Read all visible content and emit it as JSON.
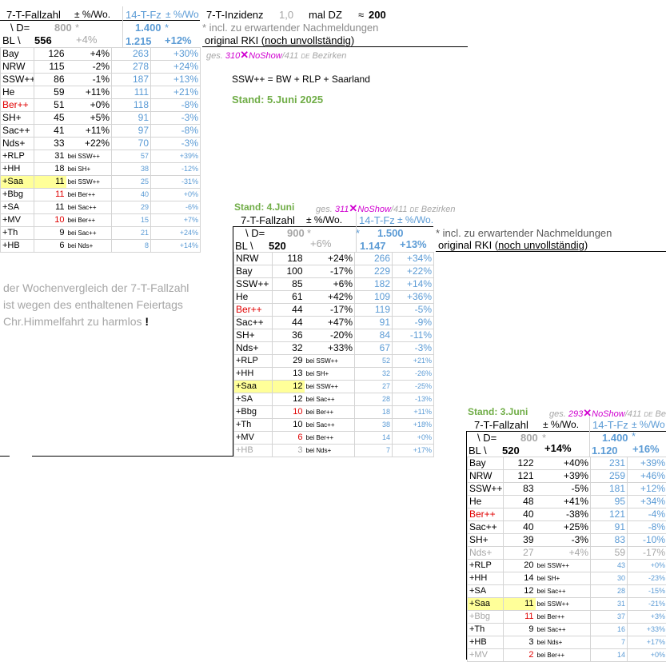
{
  "top": {
    "inzidenz_label": "7-T-Inzidenz",
    "inzidenz_value": "1,0",
    "mal_dz": "mal DZ",
    "approx": "≈",
    "approx_value": "200",
    "formula": "SSW++  =  BW + RLP + Saarland",
    "stand": "Stand: 5.Juni 2025",
    "note_star": "* incl. zu erwartender Nachmeldungen",
    "note_orig": "original RKI (",
    "note_orig_u": "noch unvollständig",
    "note_orig_end": ")",
    "source": {
      "ges": "ges.",
      "num": "310",
      "x": "✕",
      "noshow": "NoShow",
      "rest": "/411",
      "de": "DE",
      "bez": "Bezirken"
    }
  },
  "comment": {
    "line1": "der Wochenvergleich der 7-T-Fallzahl",
    "line2": "ist wegen des enthaltenen Feiertags",
    "line3": "Chr.Himmelfahrt zu harmlos",
    "excl": "!"
  },
  "table1": {
    "hdr": {
      "fallzahl": "7-T-Fallzahl",
      "pct": "± %/Wo.",
      "fz14": "14-T-Fz",
      "pct14": "± %/Wo",
      "d": "\\ D=",
      "d_val": "800",
      "star": "*",
      "fz14_val": "1.400",
      "fz14_star": "*",
      "bl": "BL \\",
      "bl_val": "556",
      "bl_pct": "+4%",
      "fz14_total": "1.215",
      "fz14_pct": "+12%"
    },
    "rows": [
      {
        "name": "Bay",
        "v": "126",
        "p": "+4%",
        "v14": "263",
        "p14": "+30%"
      },
      {
        "name": "NRW",
        "v": "115",
        "p": "-2%",
        "v14": "278",
        "p14": "+24%"
      },
      {
        "name": "SSW++",
        "v": "86",
        "p": "-1%",
        "v14": "187",
        "p14": "+13%"
      },
      {
        "name": "He",
        "v": "59",
        "p": "+11%",
        "v14": "111",
        "p14": "+21%"
      },
      {
        "name": "Ber++",
        "v": "51",
        "p": "+0%",
        "v14": "118",
        "p14": "-8%",
        "red": true
      },
      {
        "name": "SH+",
        "v": "45",
        "p": "+5%",
        "v14": "91",
        "p14": "-3%"
      },
      {
        "name": "Sac++",
        "v": "41",
        "p": "+11%",
        "v14": "97",
        "p14": "-8%"
      },
      {
        "name": "Nds+",
        "v": "33",
        "p": "+22%",
        "v14": "70",
        "p14": "-3%"
      }
    ],
    "small": [
      {
        "name": "+RLP",
        "v": "31",
        "bei": "bei SSW++",
        "v14": "57",
        "p14": "+39%"
      },
      {
        "name": "+HH",
        "v": "18",
        "bei": "bei SH+",
        "v14": "38",
        "p14": "-12%"
      },
      {
        "name": "+Saa",
        "v": "11",
        "bei": "bei SSW++",
        "v14": "25",
        "p14": "-31%",
        "hl": true
      },
      {
        "name": "+Bbg",
        "v": "11",
        "bei": "bei Ber++",
        "v14": "40",
        "p14": "+0%",
        "red": true
      },
      {
        "name": "+SA",
        "v": "11",
        "bei": "bei Sac++",
        "v14": "29",
        "p14": "-6%"
      },
      {
        "name": "+MV",
        "v": "10",
        "bei": "bei Ber++",
        "v14": "15",
        "p14": "+7%",
        "red": true
      },
      {
        "name": "+Th",
        "v": "9",
        "bei": "bei Sac++",
        "v14": "21",
        "p14": "+24%"
      },
      {
        "name": "+HB",
        "v": "6",
        "bei": "bei Nds+",
        "v14": "8",
        "p14": "+14%"
      }
    ]
  },
  "block2": {
    "stand": "Stand: 4.Juni",
    "source": {
      "ges": "ges.",
      "num": "311",
      "x": "✕",
      "noshow": "NoShow",
      "rest": "/411",
      "de": "DE",
      "bez": "Bezirken"
    },
    "note_star": "* incl. zu erwartender Nachmeldungen",
    "note_orig": "original RKI (",
    "note_orig_u": "noch unvollständig",
    "note_orig_end": ")"
  },
  "table2": {
    "hdr": {
      "fallzahl": "7-T-Fallzahl",
      "pct": "± %/Wo.",
      "fz14": "14-T-Fz",
      "pct14": "± %/Wo.",
      "d": "\\ D=",
      "d_val": "900",
      "star": "*",
      "fz14_val": "1.500",
      "fz14_star": "*",
      "bl": "BL \\",
      "bl_val": "520",
      "bl_pct": "+6%",
      "fz14_total": "1.147",
      "fz14_pct": "+13%"
    },
    "rows": [
      {
        "name": "NRW",
        "v": "118",
        "p": "+24%",
        "v14": "266",
        "p14": "+34%"
      },
      {
        "name": "Bay",
        "v": "100",
        "p": "-17%",
        "v14": "229",
        "p14": "+22%"
      },
      {
        "name": "SSW++",
        "v": "85",
        "p": "+6%",
        "v14": "182",
        "p14": "+14%"
      },
      {
        "name": "He",
        "v": "61",
        "p": "+42%",
        "v14": "109",
        "p14": "+36%"
      },
      {
        "name": "Ber++",
        "v": "44",
        "p": "-17%",
        "v14": "119",
        "p14": "-5%",
        "red": true
      },
      {
        "name": "Sac++",
        "v": "44",
        "p": "+47%",
        "v14": "91",
        "p14": "-9%"
      },
      {
        "name": "SH+",
        "v": "36",
        "p": "-20%",
        "v14": "84",
        "p14": "-11%"
      },
      {
        "name": "Nds+",
        "v": "32",
        "p": "+33%",
        "v14": "67",
        "p14": "-3%"
      }
    ],
    "small": [
      {
        "name": "+RLP",
        "v": "29",
        "bei": "bei SSW++",
        "v14": "52",
        "p14": "+21%"
      },
      {
        "name": "+HH",
        "v": "13",
        "bei": "bei SH+",
        "v14": "32",
        "p14": "-26%"
      },
      {
        "name": "+Saa",
        "v": "12",
        "bei": "bei SSW++",
        "v14": "27",
        "p14": "-25%",
        "hl": true
      },
      {
        "name": "+SA",
        "v": "12",
        "bei": "bei Sac++",
        "v14": "28",
        "p14": "-13%"
      },
      {
        "name": "+Bbg",
        "v": "10",
        "bei": "bei Ber++",
        "v14": "18",
        "p14": "+11%",
        "red": true
      },
      {
        "name": "+Th",
        "v": "10",
        "bei": "bei Sac++",
        "v14": "38",
        "p14": "+18%"
      },
      {
        "name": "+MV",
        "v": "6",
        "bei": "bei Ber++",
        "v14": "14",
        "p14": "+0%",
        "red": true
      },
      {
        "name": "+HB",
        "v": "3",
        "bei": "bei Nds+",
        "v14": "7",
        "p14": "+17%",
        "gray": true
      }
    ]
  },
  "block3": {
    "stand": "Stand: 3.Juni",
    "source": {
      "ges": "ges.",
      "num": "293",
      "x": "✕",
      "noshow": "NoShow",
      "rest": "/411",
      "de": "DE",
      "bez": "Bezirken"
    }
  },
  "table3": {
    "hdr": {
      "fallzahl": "7-T-Fallzahl",
      "pct": "± %/Wo.",
      "fz14": "14-T-Fz",
      "pct14": "± %/Wo",
      "d": "\\ D=",
      "d_val": "800",
      "star": "*",
      "fz14_val": "1.400",
      "fz14_star": "*",
      "bl": "BL \\",
      "bl_val": "520",
      "bl_pct": "+14%",
      "fz14_total": "1.120",
      "fz14_pct": "+16%"
    },
    "rows": [
      {
        "name": "Bay",
        "v": "122",
        "p": "+40%",
        "v14": "231",
        "p14": "+39%"
      },
      {
        "name": "NRW",
        "v": "121",
        "p": "+39%",
        "v14": "259",
        "p14": "+46%"
      },
      {
        "name": "SSW++",
        "v": "83",
        "p": "-5%",
        "v14": "181",
        "p14": "+12%"
      },
      {
        "name": "He",
        "v": "48",
        "p": "+41%",
        "v14": "95",
        "p14": "+34%"
      },
      {
        "name": "Ber++",
        "v": "40",
        "p": "-38%",
        "v14": "121",
        "p14": "-4%",
        "red": true
      },
      {
        "name": "Sac++",
        "v": "40",
        "p": "+25%",
        "v14": "91",
        "p14": "-8%"
      },
      {
        "name": "SH+",
        "v": "39",
        "p": "-3%",
        "v14": "83",
        "p14": "-10%"
      },
      {
        "name": "Nds+",
        "v": "27",
        "p": "+4%",
        "v14": "59",
        "p14": "-17%",
        "gray": true
      }
    ],
    "small": [
      {
        "name": "+RLP",
        "v": "20",
        "bei": "bei SSW++",
        "v14": "43",
        "p14": "+0%"
      },
      {
        "name": "+HH",
        "v": "14",
        "bei": "bei SH+",
        "v14": "30",
        "p14": "-23%"
      },
      {
        "name": "+SA",
        "v": "12",
        "bei": "bei Sac++",
        "v14": "28",
        "p14": "-15%"
      },
      {
        "name": "+Saa",
        "v": "11",
        "bei": "bei SSW++",
        "v14": "31",
        "p14": "-21%",
        "hl": true
      },
      {
        "name": "+Bbg",
        "v": "11",
        "bei": "bei Ber++",
        "v14": "37",
        "p14": "+3%",
        "red": true,
        "gray": true
      },
      {
        "name": "+Th",
        "v": "9",
        "bei": "bei Sac++",
        "v14": "16",
        "p14": "+33%"
      },
      {
        "name": "+HB",
        "v": "3",
        "bei": "bei Nds+",
        "v14": "7",
        "p14": "+17%"
      },
      {
        "name": "+MV",
        "v": "2",
        "bei": "bei Ber++",
        "v14": "14",
        "p14": "+0%",
        "red": true,
        "gray": true
      }
    ]
  }
}
